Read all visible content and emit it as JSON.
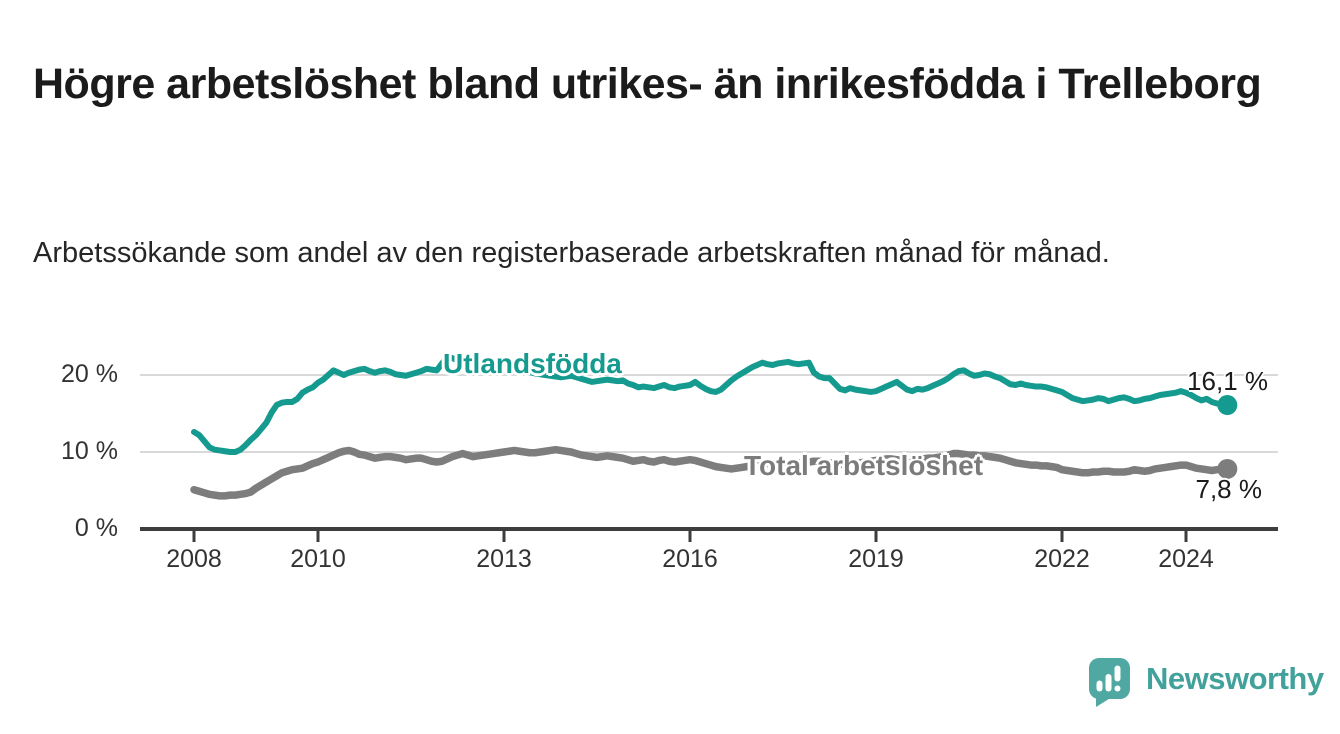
{
  "title": "Högre arbetslöshet bland utrikes- än inrikesfödda i Trelleborg",
  "subtitle": "Arbetssökande som andel av den registerbaserade arbetskraften månad för månad.",
  "branding": {
    "logo_text": "Newsworthy",
    "logo_color": "#42a29b",
    "logo_icon": "speech-bubble-bar-chart-icon",
    "logo_icon_color": "#4fa8a1"
  },
  "chart_data": {
    "type": "line",
    "unit": "%",
    "frequency": "monthly",
    "x_start": {
      "year": 2008,
      "month": 1
    },
    "x_end": {
      "year": 2024,
      "month": 9
    },
    "x_ticks": [
      2008,
      2010,
      2013,
      2016,
      2019,
      2022,
      2024
    ],
    "y_ticks": [
      {
        "value": 0,
        "label": "0 %"
      },
      {
        "value": 10,
        "label": "10 %"
      },
      {
        "value": 20,
        "label": "20 %"
      }
    ],
    "ylim": [
      0,
      24
    ],
    "grid": "horizontal",
    "legend_position": "inline-labels",
    "axis_color": "#3d3d3d",
    "gridline_color": "#d9d9d9",
    "series": [
      {
        "name": "Utlandsfödda",
        "color": "#149a8e",
        "stroke_width": 6,
        "end_value": 16.1,
        "end_label": "16,1 %",
        "values": [
          12.6,
          12.2,
          11.4,
          10.6,
          10.3,
          10.2,
          10.1,
          10.0,
          10.0,
          10.3,
          10.9,
          11.6,
          12.2,
          13.0,
          13.8,
          15.1,
          16.1,
          16.4,
          16.5,
          16.5,
          16.9,
          17.7,
          18.1,
          18.4,
          19.0,
          19.4,
          20.0,
          20.6,
          20.3,
          20.0,
          20.3,
          20.5,
          20.7,
          20.8,
          20.5,
          20.3,
          20.5,
          20.6,
          20.4,
          20.1,
          20.0,
          19.9,
          20.1,
          20.3,
          20.5,
          20.8,
          20.7,
          20.6,
          21.5,
          22.3,
          22.2,
          21.9,
          21.6,
          21.3,
          21.1,
          21.0,
          20.9,
          20.8,
          20.8,
          20.7,
          20.7,
          20.8,
          20.9,
          20.7,
          20.5,
          20.4,
          20.2,
          20.1,
          20.0,
          19.9,
          19.8,
          19.7,
          19.8,
          19.9,
          19.7,
          19.5,
          19.3,
          19.1,
          19.2,
          19.3,
          19.4,
          19.3,
          19.2,
          19.3,
          18.9,
          18.7,
          18.4,
          18.5,
          18.4,
          18.3,
          18.5,
          18.7,
          18.4,
          18.3,
          18.5,
          18.6,
          18.7,
          19.1,
          18.6,
          18.2,
          17.9,
          17.8,
          18.1,
          18.7,
          19.3,
          19.8,
          20.2,
          20.6,
          21.0,
          21.3,
          21.6,
          21.4,
          21.3,
          21.5,
          21.6,
          21.7,
          21.5,
          21.4,
          21.5,
          21.6,
          20.3,
          19.8,
          19.6,
          19.6,
          18.9,
          18.2,
          18.0,
          18.3,
          18.1,
          18.0,
          17.9,
          17.8,
          17.9,
          18.2,
          18.5,
          18.8,
          19.1,
          18.6,
          18.1,
          17.9,
          18.2,
          18.1,
          18.3,
          18.6,
          18.9,
          19.2,
          19.6,
          20.1,
          20.5,
          20.6,
          20.2,
          19.9,
          20.0,
          20.2,
          20.1,
          19.8,
          19.6,
          19.2,
          18.8,
          18.7,
          18.9,
          18.7,
          18.6,
          18.5,
          18.5,
          18.4,
          18.2,
          18.0,
          17.8,
          17.4,
          17.0,
          16.8,
          16.6,
          16.7,
          16.8,
          17.0,
          16.9,
          16.6,
          16.8,
          17.0,
          17.1,
          16.9,
          16.6,
          16.7,
          16.9,
          17.0,
          17.2,
          17.4,
          17.5,
          17.6,
          17.7,
          17.9,
          17.7,
          17.4,
          17.0,
          16.7,
          16.9,
          16.5,
          16.3,
          16.2,
          16.1
        ]
      },
      {
        "name": "Total arbetslöshet",
        "color": "#7d7d7d",
        "stroke_width": 7.5,
        "end_value": 7.8,
        "end_label": "7,8 %",
        "values": [
          5.1,
          4.9,
          4.7,
          4.5,
          4.4,
          4.3,
          4.3,
          4.4,
          4.4,
          4.5,
          4.6,
          4.8,
          5.3,
          5.7,
          6.1,
          6.5,
          6.9,
          7.3,
          7.5,
          7.7,
          7.8,
          7.9,
          8.2,
          8.5,
          8.7,
          9.0,
          9.3,
          9.6,
          9.9,
          10.1,
          10.2,
          10.0,
          9.7,
          9.6,
          9.4,
          9.2,
          9.3,
          9.4,
          9.4,
          9.3,
          9.2,
          9.0,
          9.1,
          9.2,
          9.2,
          9.0,
          8.8,
          8.7,
          8.8,
          9.1,
          9.4,
          9.6,
          9.8,
          9.6,
          9.4,
          9.5,
          9.6,
          9.7,
          9.8,
          9.9,
          10.0,
          10.1,
          10.2,
          10.1,
          10.0,
          9.9,
          9.9,
          10.0,
          10.1,
          10.2,
          10.3,
          10.2,
          10.1,
          10.0,
          9.8,
          9.6,
          9.5,
          9.4,
          9.3,
          9.4,
          9.5,
          9.4,
          9.3,
          9.2,
          9.0,
          8.8,
          8.9,
          9.0,
          8.8,
          8.7,
          8.9,
          9.0,
          8.8,
          8.7,
          8.8,
          8.9,
          9.0,
          8.9,
          8.7,
          8.5,
          8.3,
          8.1,
          8.0,
          7.9,
          7.8,
          7.9,
          8.0,
          8.1,
          8.2,
          8.3,
          8.4,
          8.5,
          8.5,
          8.4,
          8.3,
          8.4,
          8.5,
          8.6,
          8.6,
          8.7,
          8.8,
          8.8,
          8.7,
          8.6,
          8.5,
          8.4,
          8.4,
          8.5,
          8.6,
          8.6,
          8.7,
          8.8,
          8.9,
          9.0,
          9.1,
          9.1,
          9.0,
          8.9,
          8.9,
          9.0,
          9.1,
          9.1,
          9.2,
          9.2,
          9.3,
          9.4,
          9.6,
          9.8,
          9.8,
          9.7,
          9.6,
          9.6,
          9.5,
          9.5,
          9.4,
          9.3,
          9.2,
          9.0,
          8.8,
          8.6,
          8.5,
          8.4,
          8.3,
          8.3,
          8.2,
          8.2,
          8.1,
          8.0,
          7.7,
          7.6,
          7.5,
          7.4,
          7.3,
          7.3,
          7.4,
          7.4,
          7.5,
          7.5,
          7.4,
          7.4,
          7.4,
          7.5,
          7.7,
          7.6,
          7.5,
          7.6,
          7.8,
          7.9,
          8.0,
          8.1,
          8.2,
          8.3,
          8.3,
          8.1,
          7.9,
          7.8,
          7.7,
          7.6,
          7.7,
          7.8,
          7.8
        ]
      }
    ]
  }
}
